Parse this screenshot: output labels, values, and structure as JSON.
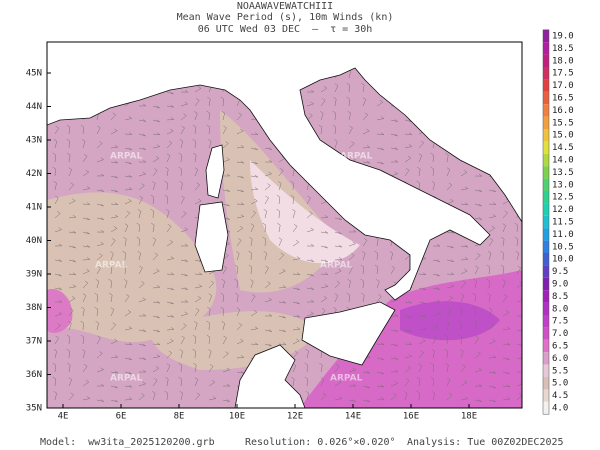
{
  "header": {
    "title": "NOAAWAVEWATCHIII",
    "subtitle": "Mean Wave Period (s), 10m Winds (kn)",
    "time": "06 UTC Wed 03 DEC  —  τ = 30h"
  },
  "map": {
    "lat_labels": [
      "45N",
      "44N",
      "43N",
      "42N",
      "41N",
      "40N",
      "39N",
      "38N",
      "37N",
      "36N",
      "35N"
    ],
    "lon_labels": [
      "4E",
      "6E",
      "8E",
      "10E",
      "12E",
      "14E",
      "16E",
      "18E"
    ],
    "watermark": "ARPAL"
  },
  "colorbar": {
    "labels": [
      "19.0",
      "18.5",
      "18.0",
      "17.5",
      "17.0",
      "16.5",
      "16.0",
      "15.5",
      "15.0",
      "14.5",
      "14.0",
      "13.5",
      "13.0",
      "12.5",
      "12.0",
      "11.5",
      "11.0",
      "10.5",
      "10.0",
      "9.5",
      "9.0",
      "8.5",
      "8.0",
      "7.5",
      "7.0",
      "6.5",
      "6.0",
      "5.5",
      "5.0",
      "4.5",
      "4.0"
    ],
    "colors": [
      "#9020a0",
      "#b020a0",
      "#c02080",
      "#d03060",
      "#e04040",
      "#e86040",
      "#f08040",
      "#f0a040",
      "#f0c040",
      "#e0e040",
      "#b0d840",
      "#80d050",
      "#50d070",
      "#30d090",
      "#20d0b0",
      "#20c0d0",
      "#20a0e0",
      "#3080e0",
      "#4060d0",
      "#6040c0",
      "#8020b0",
      "#a020b8",
      "#b030c0",
      "#c040c8",
      "#d050c8",
      "#e070c8",
      "#d8a0c8",
      "#e8c8d8",
      "#d8c0b8",
      "#e8d8d0",
      "#f5f0f0"
    ]
  },
  "footer": {
    "model": "Model:  ww3ita_2025120200.grb",
    "resolution": "Resolution: 0.026°×0.020°",
    "analysis": "Analysis: Tue 00Z02DEC2025"
  }
}
